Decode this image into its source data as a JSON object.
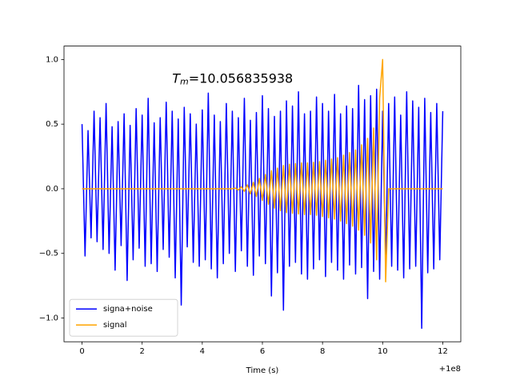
{
  "chart_data": {
    "type": "line",
    "annotation": {
      "symbol": "T",
      "subscript": "m",
      "text": "=10.056835938"
    },
    "x_label": "Time (s)",
    "x_offset_label": "+1e8",
    "x": [
      0,
      0.1,
      0.2,
      0.3,
      0.4,
      0.5,
      0.6,
      0.7,
      0.8,
      0.9,
      1,
      1.1,
      1.2,
      1.3,
      1.4,
      1.5,
      1.6,
      1.7,
      1.8,
      1.9,
      2,
      2.1,
      2.2,
      2.3,
      2.4,
      2.5,
      2.6,
      2.7,
      2.8,
      2.9,
      3,
      3.1,
      3.2,
      3.3,
      3.4,
      3.5,
      3.6,
      3.7,
      3.8,
      3.9,
      4,
      4.1,
      4.2,
      4.3,
      4.4,
      4.5,
      4.6,
      4.7,
      4.8,
      4.9,
      5,
      5.1,
      5.2,
      5.3,
      5.4,
      5.5,
      5.6,
      5.7,
      5.8,
      5.9,
      6,
      6.1,
      6.2,
      6.3,
      6.4,
      6.5,
      6.6,
      6.7,
      6.8,
      6.9,
      7,
      7.1,
      7.2,
      7.3,
      7.4,
      7.5,
      7.6,
      7.7,
      7.8,
      7.9,
      8,
      8.1,
      8.2,
      8.3,
      8.4,
      8.5,
      8.6,
      8.7,
      8.8,
      8.9,
      9,
      9.1,
      9.2,
      9.3,
      9.4,
      9.5,
      9.6,
      9.7,
      9.8,
      9.9,
      10,
      10.1,
      10.2,
      10.3,
      10.4,
      10.5,
      10.6,
      10.7,
      10.8,
      10.9,
      11,
      11.1,
      11.2,
      11.3,
      11.4,
      11.5,
      11.6,
      11.7,
      11.8,
      11.9,
      12
    ],
    "series": [
      {
        "name": "signa+noise",
        "color": "#0000ff",
        "values": [
          0.5,
          -0.52,
          0.45,
          -0.38,
          0.6,
          -0.41,
          0.55,
          -0.47,
          0.66,
          -0.5,
          0.48,
          -0.63,
          0.52,
          -0.44,
          0.58,
          -0.71,
          0.49,
          -0.55,
          0.62,
          -0.46,
          0.57,
          -0.6,
          0.7,
          -0.58,
          0.51,
          -0.64,
          0.55,
          -0.47,
          0.67,
          -0.53,
          0.6,
          -0.69,
          0.54,
          -0.9,
          0.63,
          -0.45,
          0.58,
          -0.57,
          0.5,
          -0.6,
          0.61,
          -0.55,
          0.74,
          -0.62,
          0.57,
          -0.69,
          0.52,
          -0.58,
          0.66,
          -0.5,
          0.6,
          -0.64,
          0.55,
          -0.48,
          0.7,
          -0.6,
          0.53,
          -0.67,
          0.59,
          -0.52,
          0.72,
          -0.58,
          0.62,
          -0.83,
          0.56,
          -0.65,
          0.6,
          -0.94,
          0.68,
          -0.6,
          0.64,
          -0.57,
          0.75,
          -0.66,
          0.58,
          -0.7,
          0.6,
          -0.62,
          0.71,
          -0.55,
          0.66,
          -0.68,
          0.6,
          -0.57,
          0.73,
          -0.63,
          0.58,
          -0.7,
          0.64,
          -0.59,
          0.62,
          -0.66,
          0.8,
          -0.61,
          0.69,
          -0.85,
          0.72,
          -0.64,
          0.77,
          -0.7,
          0.6,
          -0.58,
          0.66,
          -0.6,
          0.71,
          -0.63,
          0.57,
          -0.69,
          0.75,
          -0.62,
          0.68,
          -0.6,
          0.63,
          -1.08,
          0.7,
          -0.65,
          0.59,
          -0.62,
          0.66,
          -0.55,
          0.6
        ]
      },
      {
        "name": "signal",
        "color": "#ffa500",
        "values": [
          0,
          0,
          0,
          0,
          0,
          0,
          0,
          0,
          0,
          0,
          0,
          0,
          0,
          0,
          0,
          0,
          0,
          0,
          0,
          0,
          0,
          0,
          0,
          0,
          0,
          0,
          0,
          0,
          0,
          0,
          0,
          0,
          0,
          0,
          0,
          0,
          0,
          0,
          0,
          0,
          0,
          0,
          0,
          0,
          0,
          0,
          0,
          0,
          0,
          0,
          0,
          0.005,
          -0.01,
          0.015,
          -0.02,
          0.03,
          -0.04,
          0.05,
          -0.06,
          0.08,
          -0.09,
          0.11,
          -0.12,
          0.14,
          -0.15,
          0.16,
          -0.17,
          0.18,
          -0.185,
          0.19,
          -0.19,
          0.195,
          -0.195,
          0.2,
          -0.2,
          0.2,
          -0.2,
          0.205,
          -0.205,
          0.21,
          -0.215,
          0.22,
          -0.225,
          0.23,
          -0.235,
          0.24,
          -0.25,
          0.26,
          -0.27,
          0.28,
          -0.29,
          0.3,
          -0.32,
          0.34,
          -0.36,
          0.39,
          -0.42,
          0.47,
          -0.55,
          0.7,
          1.0,
          -0.72,
          0,
          0,
          0,
          0,
          0,
          0,
          0,
          0,
          0,
          0,
          0,
          0,
          0,
          0,
          0,
          0,
          0,
          0,
          0
        ]
      }
    ],
    "xlim": [
      -0.6,
      12.6
    ],
    "ylim": [
      -1.184,
      1.104
    ],
    "xticks": [
      0,
      2,
      4,
      6,
      8,
      10,
      12
    ],
    "yticks": [
      {
        "value": -1,
        "label": "−1.0"
      },
      {
        "value": -0.5,
        "label": "−0.5"
      },
      {
        "value": 0,
        "label": "0.0"
      },
      {
        "value": 0.5,
        "label": "0.5"
      },
      {
        "value": 1,
        "label": "1.0"
      }
    ],
    "grid": false,
    "legend": "lower left"
  }
}
